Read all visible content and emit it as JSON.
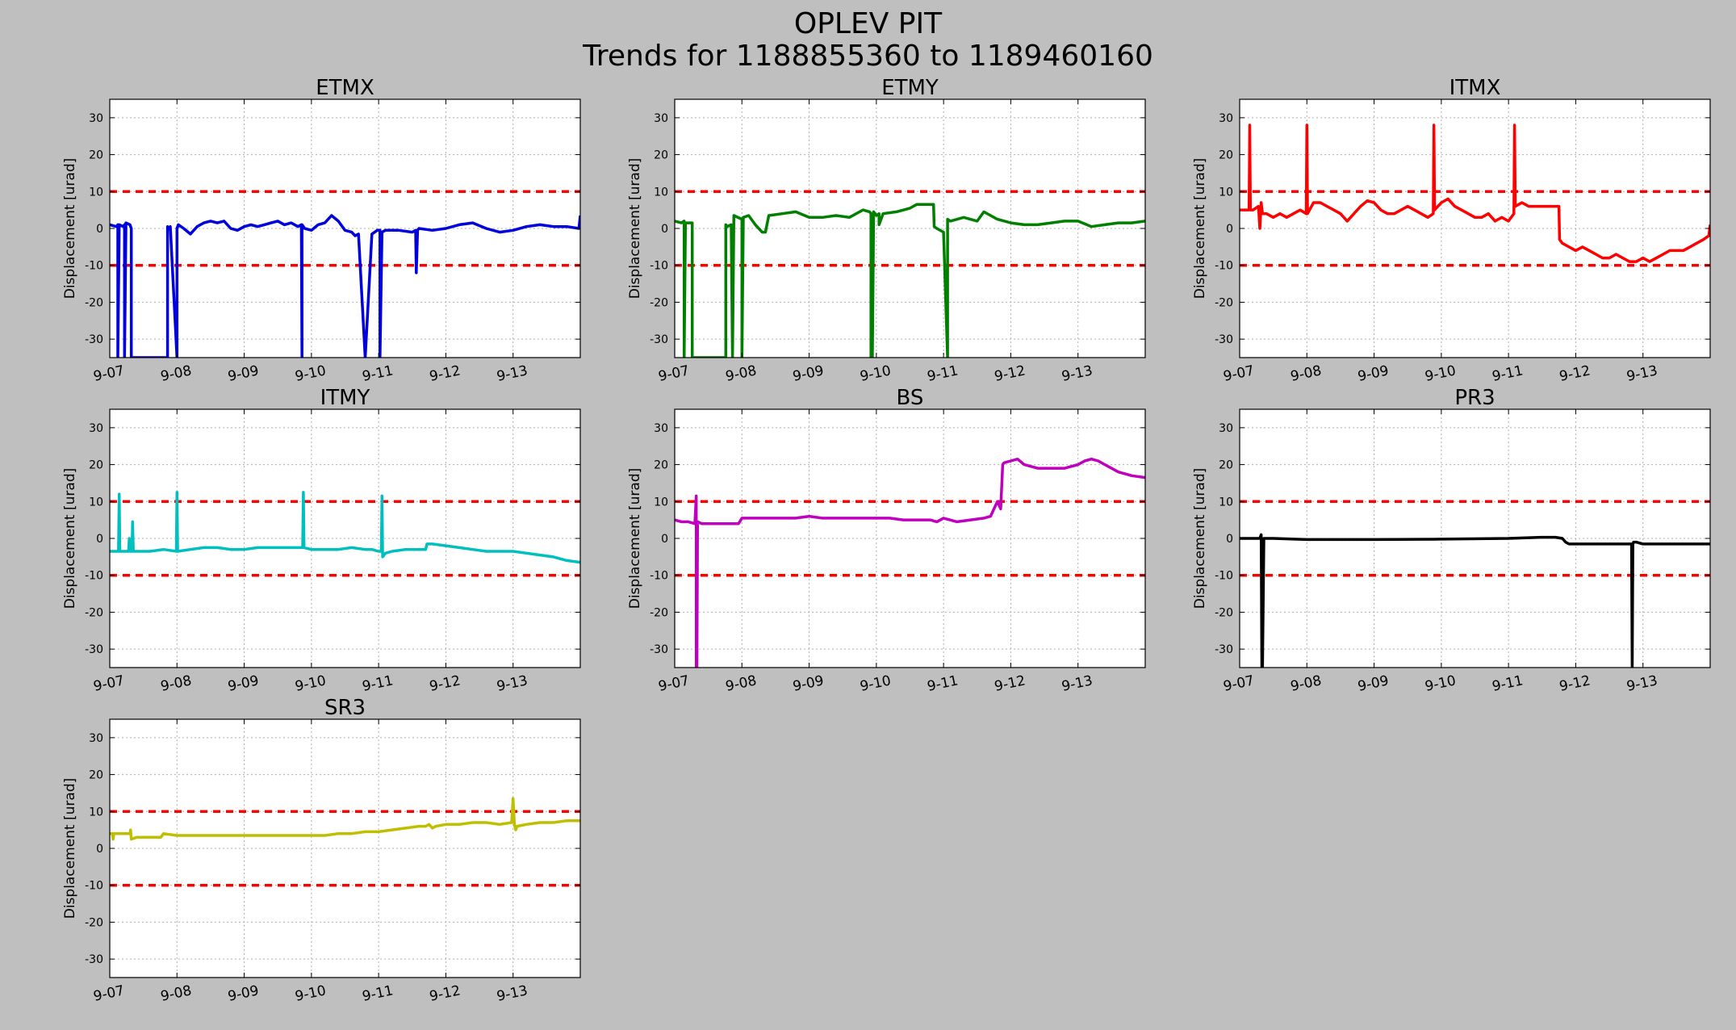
{
  "figure": {
    "title_line1": "OPLEV PIT",
    "title_line2": "Trends for 1188855360 to 1189460160"
  },
  "colors": {
    "background": "#bfbfbf",
    "threshold": "#ff0000",
    "grid": "#b0b0b0"
  },
  "chart_data": [
    {
      "type": "line",
      "title": "ETMX",
      "ylabel": "Displacement [urad]",
      "xlabel": "",
      "color": "#0000dd",
      "xlim": [
        0,
        7
      ],
      "ylim": [
        -35,
        35
      ],
      "yticks": [
        -30,
        -20,
        -10,
        0,
        10,
        20,
        30
      ],
      "xticks": [
        0,
        1,
        2,
        3,
        4,
        5,
        6
      ],
      "xtick_labels": [
        "9-07",
        "9-08",
        "9-09",
        "9-10",
        "9-11",
        "9-12",
        "9-13"
      ],
      "thresholds": [
        10,
        -10
      ],
      "grid": true,
      "series": [
        {
          "x": [
            0,
            0.1,
            0.12,
            0.12,
            0.14,
            0.2,
            0.22,
            0.22,
            0.24,
            0.24,
            0.3,
            0.32,
            0.32,
            0.34,
            0.36,
            0.5,
            0.86,
            0.86,
            0.88,
            0.9,
            1.0,
            1.0,
            1.02,
            1.1,
            1.2,
            1.3,
            1.35,
            1.4,
            1.5,
            1.6,
            1.7,
            1.8,
            1.9,
            2.0,
            2.1,
            2.2,
            2.3,
            2.4,
            2.5,
            2.6,
            2.7,
            2.8,
            2.85,
            2.86,
            2.86,
            2.88,
            2.9,
            3.0,
            3.1,
            3.2,
            3.3,
            3.4,
            3.5,
            3.6,
            3.65,
            3.7,
            3.8,
            3.9,
            3.98,
            4.02,
            4.02,
            4.05,
            4.1,
            4.3,
            4.5,
            4.55,
            4.56,
            4.58,
            4.6,
            4.8,
            5.0,
            5.2,
            5.4,
            5.6,
            5.8,
            6.0,
            6.2,
            6.4,
            6.6,
            6.8,
            6.98,
            7.0
          ],
          "y": [
            1,
            0.5,
            1,
            -35,
            1,
            0.5,
            1,
            -35,
            0,
            1.5,
            1,
            0,
            -35,
            -35,
            -35,
            -35,
            -35,
            0.5,
            0,
            0.5,
            -35,
            0,
            1,
            0,
            -1.5,
            0.5,
            1,
            1.5,
            2,
            1.5,
            2,
            0,
            -0.5,
            0.5,
            1,
            0.5,
            1,
            1.5,
            2,
            1,
            1.5,
            0.5,
            1,
            -35,
            1,
            0.5,
            0,
            -0.5,
            1,
            1.5,
            3.5,
            2,
            -0.5,
            -1,
            -2,
            -1.5,
            -35,
            -1.5,
            -0.5,
            -0.5,
            -35,
            -1,
            -0.5,
            -0.5,
            -1,
            -0.5,
            -12,
            -0.5,
            0,
            -0.5,
            0,
            1,
            1.5,
            0,
            -1,
            -0.5,
            0.5,
            1,
            0.5,
            0.5,
            0,
            3.5
          ]
        }
      ]
    },
    {
      "type": "line",
      "title": "ETMY",
      "ylabel": "Displacement [urad]",
      "xlabel": "",
      "color": "#007f00",
      "xlim": [
        0,
        7
      ],
      "ylim": [
        -35,
        35
      ],
      "yticks": [
        -30,
        -20,
        -10,
        0,
        10,
        20,
        30
      ],
      "xticks": [
        0,
        1,
        2,
        3,
        4,
        5,
        6
      ],
      "xtick_labels": [
        "9-07",
        "9-08",
        "9-09",
        "9-10",
        "9-11",
        "9-12",
        "9-13"
      ],
      "thresholds": [
        10,
        -10
      ],
      "grid": true,
      "series": [
        {
          "x": [
            0,
            0.1,
            0.14,
            0.14,
            0.16,
            0.2,
            0.26,
            0.26,
            0.28,
            0.3,
            0.5,
            0.7,
            0.76,
            0.76,
            0.78,
            0.84,
            0.86,
            0.88,
            1.0,
            1.0,
            1.02,
            1.1,
            1.2,
            1.3,
            1.35,
            1.4,
            1.6,
            1.8,
            2.0,
            2.2,
            2.4,
            2.6,
            2.8,
            2.9,
            2.92,
            2.92,
            2.94,
            2.94,
            2.96,
            3.0,
            3.04,
            3.04,
            3.1,
            3.3,
            3.5,
            3.6,
            3.7,
            3.8,
            3.85,
            3.86,
            3.9,
            4.0,
            4.06,
            4.06,
            4.1,
            4.3,
            4.5,
            4.6,
            4.7,
            4.8,
            5.0,
            5.2,
            5.4,
            5.6,
            5.8,
            6.0,
            6.2,
            6.4,
            6.6,
            6.8,
            7.0
          ],
          "y": [
            2,
            1.5,
            2,
            -35,
            1.5,
            1.5,
            1.5,
            -35,
            -35,
            -35,
            -35,
            -35,
            -35,
            1,
            0.5,
            1,
            -35,
            3.5,
            2.5,
            -35,
            3,
            3.5,
            1,
            -1,
            -1,
            3.5,
            4,
            4.5,
            3,
            3,
            3.5,
            3,
            5,
            4.5,
            4,
            -35,
            4,
            -35,
            4.5,
            3.5,
            4,
            1,
            4,
            4.5,
            5.5,
            6.5,
            6.5,
            6.5,
            6.5,
            0.5,
            0,
            -1,
            -35,
            2.5,
            2,
            3,
            2,
            4.5,
            3.5,
            2.5,
            1.5,
            1,
            1,
            1.5,
            2,
            2,
            0.5,
            1,
            1.5,
            1.5,
            2
          ]
        }
      ]
    },
    {
      "type": "line",
      "title": "ITMX",
      "ylabel": "Displacement [urad]",
      "xlabel": "",
      "color": "#ff0000",
      "xlim": [
        0,
        7
      ],
      "ylim": [
        -35,
        35
      ],
      "yticks": [
        -30,
        -20,
        -10,
        0,
        10,
        20,
        30
      ],
      "xticks": [
        0,
        1,
        2,
        3,
        4,
        5,
        6
      ],
      "xtick_labels": [
        "9-07",
        "9-08",
        "9-09",
        "9-10",
        "9-11",
        "9-12",
        "9-13"
      ],
      "thresholds": [
        10,
        -10
      ],
      "grid": true,
      "series": [
        {
          "x": [
            0,
            0.1,
            0.14,
            0.15,
            0.16,
            0.2,
            0.28,
            0.3,
            0.32,
            0.34,
            0.4,
            0.5,
            0.6,
            0.7,
            0.8,
            0.9,
            0.99,
            1.0,
            1.01,
            1.1,
            1.2,
            1.3,
            1.4,
            1.5,
            1.6,
            1.7,
            1.8,
            1.9,
            2.0,
            2.1,
            2.2,
            2.3,
            2.4,
            2.5,
            2.6,
            2.7,
            2.8,
            2.88,
            2.89,
            2.9,
            2.95,
            3.0,
            3.1,
            3.2,
            3.3,
            3.4,
            3.5,
            3.6,
            3.7,
            3.8,
            3.9,
            4.0,
            4.08,
            4.09,
            4.1,
            4.2,
            4.3,
            4.4,
            4.5,
            4.6,
            4.7,
            4.75,
            4.76,
            4.8,
            4.9,
            5.0,
            5.1,
            5.2,
            5.3,
            5.4,
            5.5,
            5.6,
            5.7,
            5.8,
            5.9,
            6.0,
            6.1,
            6.2,
            6.3,
            6.4,
            6.5,
            6.6,
            6.7,
            6.8,
            6.9,
            6.98,
            7.0
          ],
          "y": [
            5,
            5,
            5,
            28,
            5,
            5,
            6,
            0,
            7,
            4,
            4,
            3,
            4,
            3,
            4,
            5,
            4,
            28,
            4,
            7,
            7,
            6,
            5,
            4,
            2,
            4,
            6,
            7.5,
            7,
            5,
            4,
            4,
            5,
            6,
            5,
            4,
            3,
            4,
            28,
            5,
            6,
            7,
            8,
            6,
            5,
            4,
            3,
            3,
            4,
            2,
            3,
            2,
            4,
            28,
            6,
            7,
            6,
            6,
            6,
            6,
            6,
            6,
            -3,
            -4,
            -5,
            -6,
            -5,
            -6,
            -7,
            -8,
            -8,
            -7,
            -8,
            -9,
            -9,
            -8,
            -9,
            -8,
            -7,
            -6,
            -6,
            -6,
            -5,
            -4,
            -3,
            -2,
            1
          ]
        }
      ]
    },
    {
      "type": "line",
      "title": "ITMY",
      "ylabel": "Displacement [urad]",
      "xlabel": "",
      "color": "#00bfbf",
      "xlim": [
        0,
        7
      ],
      "ylim": [
        -35,
        35
      ],
      "yticks": [
        -30,
        -20,
        -10,
        0,
        10,
        20,
        30
      ],
      "xticks": [
        0,
        1,
        2,
        3,
        4,
        5,
        6
      ],
      "xtick_labels": [
        "9-07",
        "9-08",
        "9-09",
        "9-10",
        "9-11",
        "9-12",
        "9-13"
      ],
      "thresholds": [
        10,
        -10
      ],
      "grid": true,
      "series": [
        {
          "x": [
            0,
            0.1,
            0.13,
            0.14,
            0.15,
            0.2,
            0.28,
            0.29,
            0.3,
            0.33,
            0.34,
            0.35,
            0.4,
            0.6,
            0.8,
            0.99,
            1.0,
            1.01,
            1.2,
            1.4,
            1.6,
            1.8,
            2.0,
            2.2,
            2.4,
            2.6,
            2.8,
            2.87,
            2.88,
            2.89,
            3.0,
            3.2,
            3.4,
            3.6,
            3.8,
            3.9,
            4.0,
            4.04,
            4.05,
            4.06,
            4.1,
            4.2,
            4.4,
            4.6,
            4.7,
            4.72,
            4.8,
            5.0,
            5.2,
            5.4,
            5.6,
            5.8,
            6.0,
            6.2,
            6.4,
            6.6,
            6.8,
            7.0
          ],
          "y": [
            -3.5,
            -3.5,
            -3.5,
            12,
            -3.5,
            -3.5,
            -3.5,
            0,
            -3.5,
            -3.5,
            4.5,
            -3.5,
            -3.5,
            -3.5,
            -3,
            -3.5,
            12.5,
            -3.5,
            -3,
            -2.5,
            -2.5,
            -3,
            -3,
            -2.5,
            -2.5,
            -2.5,
            -2.5,
            -2.5,
            12.5,
            -2.5,
            -3,
            -3,
            -3,
            -2.5,
            -3,
            -3,
            -3.5,
            -3.5,
            11.5,
            -5,
            -4,
            -3.5,
            -3,
            -3,
            -3,
            -1.5,
            -1.5,
            -2,
            -2.5,
            -3,
            -3.5,
            -3.5,
            -3.5,
            -4,
            -4.5,
            -5,
            -6,
            -6.5
          ]
        }
      ]
    },
    {
      "type": "line",
      "title": "BS",
      "ylabel": "Displacement [urad]",
      "xlabel": "",
      "color": "#bf00bf",
      "xlim": [
        0,
        7
      ],
      "ylim": [
        -35,
        35
      ],
      "yticks": [
        -30,
        -20,
        -10,
        0,
        10,
        20,
        30
      ],
      "xticks": [
        0,
        1,
        2,
        3,
        4,
        5,
        6
      ],
      "xtick_labels": [
        "9-07",
        "9-08",
        "9-09",
        "9-10",
        "9-11",
        "9-12",
        "9-13"
      ],
      "thresholds": [
        10,
        -10
      ],
      "grid": true,
      "series": [
        {
          "x": [
            0,
            0.1,
            0.2,
            0.3,
            0.32,
            0.32,
            0.33,
            0.34,
            0.4,
            0.6,
            0.8,
            0.95,
            1.0,
            1.2,
            1.4,
            1.6,
            1.8,
            2.0,
            2.2,
            2.4,
            2.6,
            2.8,
            3.0,
            3.2,
            3.4,
            3.6,
            3.8,
            3.9,
            4.0,
            4.2,
            4.4,
            4.6,
            4.7,
            4.75,
            4.8,
            4.85,
            4.88,
            4.9,
            5.0,
            5.1,
            5.2,
            5.4,
            5.6,
            5.8,
            6.0,
            6.1,
            6.2,
            6.3,
            6.4,
            6.6,
            6.8,
            7.0
          ],
          "y": [
            5,
            4.5,
            4.5,
            4,
            11.5,
            -35,
            -35,
            4.5,
            4,
            4,
            4,
            4,
            5.5,
            5.5,
            5.5,
            5.5,
            5.5,
            6,
            5.5,
            5.5,
            5.5,
            5.5,
            5.5,
            5.5,
            5,
            5,
            5,
            4.5,
            5.5,
            4.5,
            5,
            5.5,
            6,
            8,
            10,
            8,
            20,
            20.5,
            21,
            21.5,
            20,
            19,
            19,
            19,
            20,
            21,
            21.5,
            21,
            20,
            18,
            17,
            16.5
          ]
        }
      ]
    },
    {
      "type": "line",
      "title": "PR3",
      "ylabel": "Displacement [urad]",
      "xlabel": "",
      "color": "#000000",
      "xlim": [
        0,
        7
      ],
      "ylim": [
        -35,
        35
      ],
      "yticks": [
        -30,
        -20,
        -10,
        0,
        10,
        20,
        30
      ],
      "xticks": [
        0,
        1,
        2,
        3,
        4,
        5,
        6
      ],
      "xtick_labels": [
        "9-07",
        "9-08",
        "9-09",
        "9-10",
        "9-11",
        "9-12",
        "9-13"
      ],
      "thresholds": [
        10,
        -10
      ],
      "grid": true,
      "series": [
        {
          "x": [
            0,
            0.2,
            0.3,
            0.32,
            0.33,
            0.34,
            0.36,
            0.5,
            1.0,
            2.0,
            3.0,
            4.0,
            4.5,
            4.7,
            4.8,
            4.85,
            4.9,
            5.0,
            5.5,
            5.83,
            5.84,
            5.85,
            5.86,
            5.9,
            6.0,
            6.5,
            7.0
          ],
          "y": [
            0,
            0,
            0,
            1,
            -35,
            -35,
            0,
            0,
            -0.3,
            -0.3,
            -0.2,
            0,
            0.3,
            0.3,
            0,
            -1,
            -1.5,
            -1.5,
            -1.5,
            -1.5,
            -35,
            -1.5,
            -1,
            -1,
            -1.5,
            -1.5,
            -1.5
          ]
        }
      ]
    },
    {
      "type": "line",
      "title": "SR3",
      "ylabel": "Displacement [urad]",
      "xlabel": "",
      "color": "#bfbf00",
      "xlim": [
        0,
        7
      ],
      "ylim": [
        -35,
        35
      ],
      "yticks": [
        -30,
        -20,
        -10,
        0,
        10,
        20,
        30
      ],
      "xticks": [
        0,
        1,
        2,
        3,
        4,
        5,
        6
      ],
      "xtick_labels": [
        "9-07",
        "9-08",
        "9-09",
        "9-10",
        "9-11",
        "9-12",
        "9-13"
      ],
      "thresholds": [
        10,
        -10
      ],
      "grid": true,
      "series": [
        {
          "x": [
            0,
            0.04,
            0.05,
            0.06,
            0.2,
            0.25,
            0.3,
            0.31,
            0.32,
            0.4,
            0.6,
            0.76,
            0.8,
            1.0,
            1.2,
            1.4,
            1.6,
            1.8,
            2.0,
            2.2,
            2.4,
            2.6,
            2.8,
            3.0,
            3.2,
            3.4,
            3.6,
            3.8,
            4.0,
            4.2,
            4.4,
            4.6,
            4.7,
            4.75,
            4.8,
            4.85,
            5.0,
            5.2,
            5.4,
            5.6,
            5.8,
            5.98,
            6.0,
            6.02,
            6.04,
            6.06,
            6.2,
            6.4,
            6.6,
            6.8,
            7.0
          ],
          "y": [
            4,
            4,
            2.5,
            4,
            4,
            4,
            4,
            5,
            2.5,
            3,
            3,
            3,
            4,
            3.5,
            3.5,
            3.5,
            3.5,
            3.5,
            3.5,
            3.5,
            3.5,
            3.5,
            3.5,
            3.5,
            3.5,
            4,
            4,
            4.5,
            4.5,
            5,
            5.5,
            6,
            6,
            6.5,
            5.5,
            6,
            6.5,
            6.5,
            7,
            7,
            6.5,
            7,
            13.5,
            6.5,
            5,
            6,
            6.5,
            7,
            7,
            7.5,
            7.5
          ]
        }
      ]
    }
  ]
}
